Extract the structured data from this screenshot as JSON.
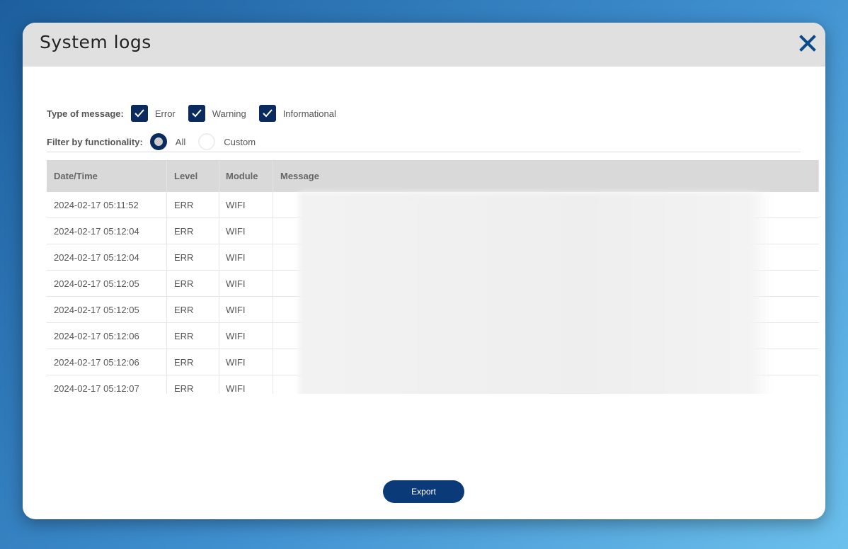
{
  "dialog": {
    "title": "System logs",
    "close_icon": "close-icon",
    "accent": "#0b2a5e"
  },
  "filters": {
    "type_label": "Type of message:",
    "types": [
      {
        "label": "Error",
        "checked": true
      },
      {
        "label": "Warning",
        "checked": true
      },
      {
        "label": "Informational",
        "checked": true
      }
    ],
    "functionality_label": "Filter by functionality:",
    "functionality": [
      {
        "label": "All",
        "selected": true
      },
      {
        "label": "Custom",
        "selected": false
      }
    ]
  },
  "table": {
    "columns": [
      "Date/Time",
      "Level",
      "Module",
      "Message"
    ],
    "rows": [
      [
        "2024-02-17 05:11:52",
        "ERR",
        "WIFI"
      ],
      [
        "2024-02-17 05:12:04",
        "ERR",
        "WIFI"
      ],
      [
        "2024-02-17 05:12:04",
        "ERR",
        "WIFI"
      ],
      [
        "2024-02-17 05:12:05",
        "ERR",
        "WIFI"
      ],
      [
        "2024-02-17 05:12:05",
        "ERR",
        "WIFI"
      ],
      [
        "2024-02-17 05:12:06",
        "ERR",
        "WIFI"
      ],
      [
        "2024-02-17 05:12:06",
        "ERR",
        "WIFI"
      ],
      [
        "2024-02-17 05:12:07",
        "ERR",
        "WIFI"
      ]
    ]
  },
  "export_label": "Export"
}
